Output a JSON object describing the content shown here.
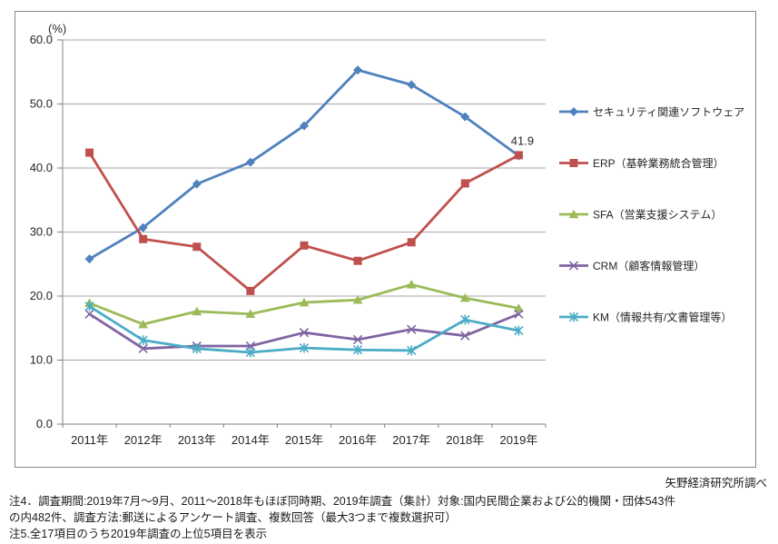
{
  "source_note": "矢野経済研究所調べ",
  "notes": [
    "注4．調査期間:2019年7月～9月、2011～2018年もほぼ同時期、2019年調査（集計）対象:国内民間企業および公的機関・団体543件",
    "の内482件、調査方法:郵送によるアンケート調査、複数回答（最大3つまで複数選択可）",
    "注5.全17項目のうち2019年調査の上位5項目を表示"
  ],
  "chart_data": {
    "type": "line",
    "unit_label": "(%)",
    "categories": [
      "2011年",
      "2012年",
      "2013年",
      "2014年",
      "2015年",
      "2016年",
      "2017年",
      "2018年",
      "2019年"
    ],
    "series": [
      {
        "key": "security",
        "name": "セキュリティ関連ソフトウェア",
        "color": "#4F81BD",
        "marker": "diamond",
        "values": [
          25.8,
          30.7,
          37.5,
          40.9,
          46.6,
          55.3,
          53.0,
          48.0,
          41.9
        ]
      },
      {
        "key": "erp",
        "name": "ERP（基幹業務統合管理）",
        "color": "#C0504D",
        "marker": "square",
        "values": [
          42.4,
          28.9,
          27.7,
          20.8,
          27.9,
          25.5,
          28.4,
          37.6,
          42.0
        ]
      },
      {
        "key": "sfa",
        "name": "SFA（営業支援システム）",
        "color": "#9BBB59",
        "marker": "triangle",
        "values": [
          18.9,
          15.6,
          17.6,
          17.2,
          19.0,
          19.4,
          21.8,
          19.7,
          18.1
        ]
      },
      {
        "key": "crm",
        "name": "CRM（顧客情報管理）",
        "color": "#8064A2",
        "marker": "x",
        "values": [
          17.2,
          11.8,
          12.2,
          12.2,
          14.3,
          13.2,
          14.8,
          13.8,
          17.2
        ]
      },
      {
        "key": "km",
        "name": "KM（情報共有/文書管理等）",
        "color": "#4BACC6",
        "marker": "asterisk",
        "values": [
          18.4,
          13.1,
          11.8,
          11.2,
          11.9,
          11.6,
          11.5,
          16.3,
          14.6
        ]
      }
    ],
    "ylim": [
      0,
      60
    ],
    "ytick_step": 10,
    "ytick_labels": [
      "0.0",
      "10.0",
      "20.0",
      "30.0",
      "40.0",
      "50.0",
      "60.0"
    ],
    "grid": true,
    "legend_position": "right",
    "annotation": {
      "text": "41.9",
      "series_index": 0,
      "point_index": 8
    },
    "colors": {
      "grid": "#A6A6A6",
      "axis": "#808080",
      "frame_border": "#868686",
      "text": "#262626"
    }
  }
}
